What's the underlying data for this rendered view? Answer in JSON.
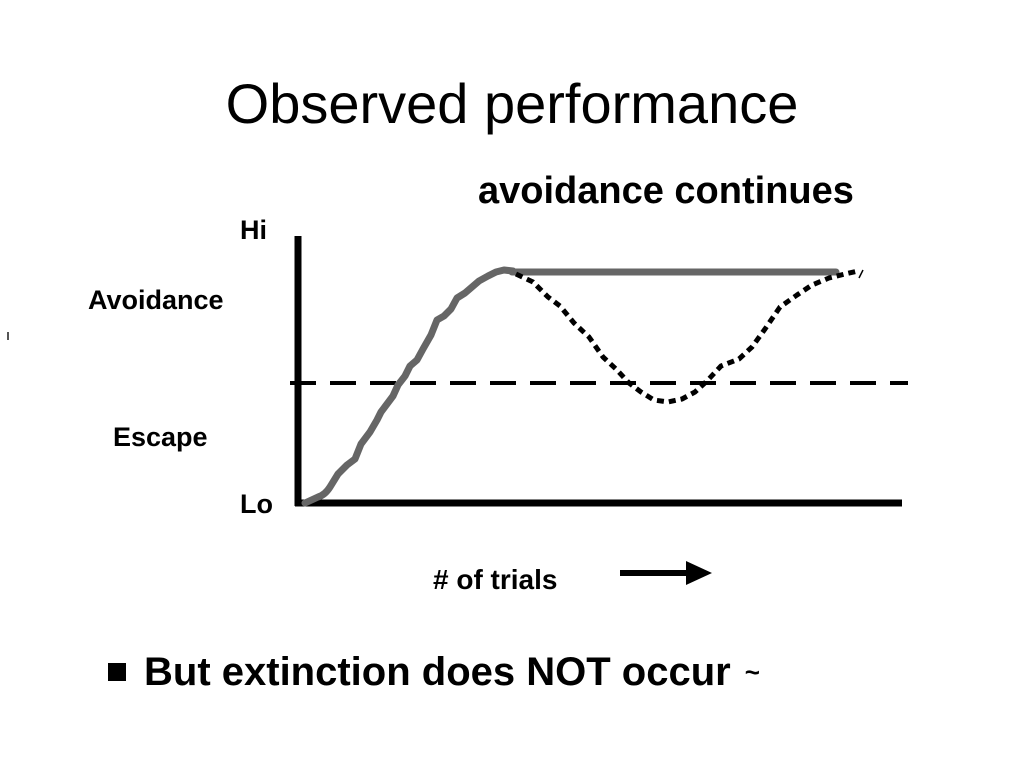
{
  "slide": {
    "title": "Observed performance",
    "annotation": "avoidance continues",
    "bullet": {
      "text": "But extinction does NOT occur",
      "trailing": "~"
    }
  },
  "diagram": {
    "y_axis": {
      "top_label": "Hi",
      "bottom_label": "Lo",
      "upper_region_label": "Avoidance",
      "lower_region_label": "Escape"
    },
    "x_axis": {
      "label": "# of trials",
      "direction_icon": "right-arrow-icon"
    },
    "lines": [
      {
        "role": "learned performance",
        "style": "solid",
        "color": "#666666"
      },
      {
        "role": "threshold",
        "style": "dashed",
        "color": "#000000"
      },
      {
        "role": "extinction trials",
        "style": "dotted",
        "color": "#000000"
      }
    ]
  }
}
